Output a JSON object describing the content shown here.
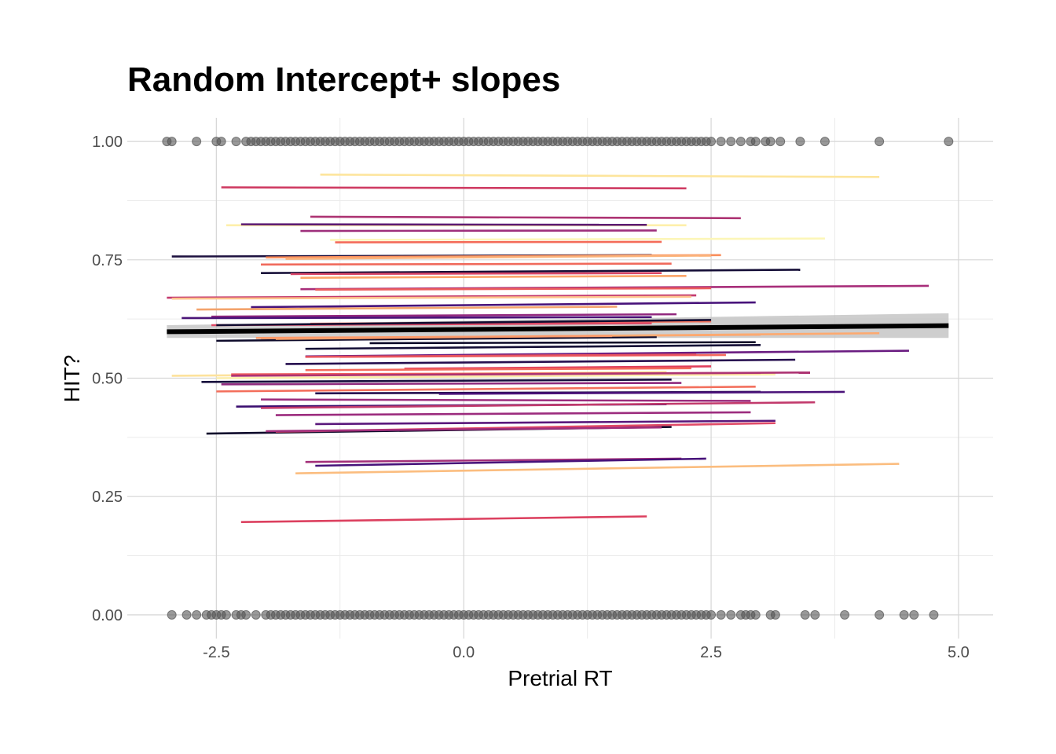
{
  "chart_data": {
    "type": "scatter",
    "title": "Random Intercept+ slopes",
    "xlabel": "Pretrial RT",
    "ylabel": "HIT?",
    "xlim": [
      -3.4,
      5.35
    ],
    "ylim": [
      -0.05,
      1.05
    ],
    "x_ticks": [
      -2.5,
      0.0,
      2.5,
      5.0
    ],
    "x_tick_labels": [
      "-2.5",
      "0.0",
      "2.5",
      "5.0"
    ],
    "y_ticks": [
      0.0,
      0.25,
      0.5,
      0.75,
      1.0
    ],
    "y_tick_labels": [
      "0.00",
      "0.25",
      "0.50",
      "0.75",
      "1.00"
    ],
    "grid": true,
    "legend": "none",
    "points": {
      "color": "#555555",
      "y1_x": [
        -3.0,
        -2.95,
        -2.7,
        -2.5,
        -2.45,
        -2.3,
        -2.2,
        -2.15,
        -2.1,
        -2.05,
        -2.0,
        -1.95,
        -1.9,
        -1.85,
        -1.8,
        -1.75,
        -1.7,
        -1.65,
        -1.6,
        -1.55,
        -1.5,
        -1.45,
        -1.4,
        -1.35,
        -1.3,
        -1.25,
        -1.2,
        -1.15,
        -1.1,
        -1.05,
        -1.0,
        -0.95,
        -0.9,
        -0.85,
        -0.8,
        -0.75,
        -0.7,
        -0.65,
        -0.6,
        -0.55,
        -0.5,
        -0.45,
        -0.4,
        -0.35,
        -0.3,
        -0.25,
        -0.2,
        -0.15,
        -0.1,
        -0.05,
        0.0,
        0.05,
        0.1,
        0.15,
        0.2,
        0.25,
        0.3,
        0.35,
        0.4,
        0.45,
        0.5,
        0.55,
        0.6,
        0.65,
        0.7,
        0.75,
        0.8,
        0.85,
        0.9,
        0.95,
        1.0,
        1.05,
        1.1,
        1.15,
        1.2,
        1.25,
        1.3,
        1.35,
        1.4,
        1.45,
        1.5,
        1.55,
        1.6,
        1.65,
        1.7,
        1.75,
        1.8,
        1.85,
        1.9,
        1.95,
        2.0,
        2.05,
        2.1,
        2.15,
        2.2,
        2.25,
        2.3,
        2.35,
        2.4,
        2.45,
        2.5,
        2.6,
        2.7,
        2.8,
        2.9,
        2.95,
        3.05,
        3.1,
        3.2,
        3.4,
        3.65,
        4.2,
        4.9
      ],
      "y0_x": [
        -2.95,
        -2.8,
        -2.7,
        -2.6,
        -2.55,
        -2.5,
        -2.45,
        -2.4,
        -2.3,
        -2.25,
        -2.2,
        -2.1,
        -2.0,
        -1.95,
        -1.9,
        -1.85,
        -1.8,
        -1.75,
        -1.7,
        -1.65,
        -1.6,
        -1.55,
        -1.5,
        -1.45,
        -1.4,
        -1.35,
        -1.3,
        -1.25,
        -1.2,
        -1.15,
        -1.1,
        -1.05,
        -1.0,
        -0.95,
        -0.9,
        -0.85,
        -0.8,
        -0.75,
        -0.7,
        -0.65,
        -0.6,
        -0.55,
        -0.5,
        -0.45,
        -0.4,
        -0.35,
        -0.3,
        -0.25,
        -0.2,
        -0.15,
        -0.1,
        -0.05,
        0.0,
        0.05,
        0.1,
        0.15,
        0.2,
        0.25,
        0.3,
        0.35,
        0.4,
        0.45,
        0.5,
        0.55,
        0.6,
        0.65,
        0.7,
        0.75,
        0.8,
        0.85,
        0.9,
        0.95,
        1.0,
        1.05,
        1.1,
        1.15,
        1.2,
        1.25,
        1.3,
        1.35,
        1.4,
        1.45,
        1.5,
        1.55,
        1.6,
        1.65,
        1.7,
        1.75,
        1.8,
        1.85,
        1.9,
        1.95,
        2.0,
        2.05,
        2.1,
        2.15,
        2.2,
        2.25,
        2.3,
        2.35,
        2.4,
        2.45,
        2.5,
        2.6,
        2.7,
        2.8,
        2.85,
        2.9,
        2.95,
        3.1,
        3.15,
        3.45,
        3.55,
        3.85,
        4.2,
        4.45,
        4.55,
        4.75
      ]
    },
    "fixed_effect": {
      "x": [
        -3.0,
        4.9
      ],
      "y": [
        0.598,
        0.611
      ],
      "ci_lower": [
        0.585,
        0.585
      ],
      "ci_upper": [
        0.612,
        0.637
      ],
      "color": "#000000",
      "ci_color": "#bdbdbd"
    },
    "random_lines": [
      {
        "x": [
          -1.45,
          4.2
        ],
        "y": [
          0.93,
          0.925
        ],
        "color": "#fde59c"
      },
      {
        "x": [
          -2.45,
          2.25
        ],
        "y": [
          0.903,
          0.901
        ],
        "color": "#cf3c63"
      },
      {
        "x": [
          -1.55,
          2.8
        ],
        "y": [
          0.841,
          0.838
        ],
        "color": "#ad3473"
      },
      {
        "x": [
          -2.4,
          2.25
        ],
        "y": [
          0.823,
          0.823
        ],
        "color": "#feefaa"
      },
      {
        "x": [
          -2.25,
          1.85
        ],
        "y": [
          0.825,
          0.824
        ],
        "color": "#5c1b74"
      },
      {
        "x": [
          -1.65,
          1.95
        ],
        "y": [
          0.811,
          0.812
        ],
        "color": "#9e2f7c"
      },
      {
        "x": [
          -1.35,
          3.65
        ],
        "y": [
          0.792,
          0.795
        ],
        "color": "#fcf6b8"
      },
      {
        "x": [
          -1.3,
          2.0
        ],
        "y": [
          0.787,
          0.788
        ],
        "color": "#f46b59"
      },
      {
        "x": [
          -2.95,
          1.9
        ],
        "y": [
          0.757,
          0.76
        ],
        "color": "#1d113f"
      },
      {
        "x": [
          -2.0,
          2.6
        ],
        "y": [
          0.755,
          0.76
        ],
        "color": "#f98e5c"
      },
      {
        "x": [
          -1.8,
          2.5
        ],
        "y": [
          0.752,
          0.759
        ],
        "color": "#fbb27a"
      },
      {
        "x": [
          -2.05,
          2.1
        ],
        "y": [
          0.74,
          0.742
        ],
        "color": "#f06a5c"
      },
      {
        "x": [
          -2.05,
          3.4
        ],
        "y": [
          0.722,
          0.729
        ],
        "color": "#150e37"
      },
      {
        "x": [
          -1.75,
          2.0
        ],
        "y": [
          0.72,
          0.722
        ],
        "color": "#d94668"
      },
      {
        "x": [
          -1.65,
          2.25
        ],
        "y": [
          0.712,
          0.716
        ],
        "color": "#fca569"
      },
      {
        "x": [
          -1.65,
          4.7
        ],
        "y": [
          0.688,
          0.695
        ],
        "color": "#a82e7a"
      },
      {
        "x": [
          -1.5,
          2.5
        ],
        "y": [
          0.687,
          0.69
        ],
        "color": "#ec5e5e"
      },
      {
        "x": [
          -3.0,
          2.35
        ],
        "y": [
          0.67,
          0.675
        ],
        "color": "#c43a6e"
      },
      {
        "x": [
          -2.95,
          2.3
        ],
        "y": [
          0.668,
          0.672
        ],
        "color": "#fdc38d"
      },
      {
        "x": [
          -2.15,
          2.95
        ],
        "y": [
          0.65,
          0.66
        ],
        "color": "#47127a"
      },
      {
        "x": [
          -2.7,
          1.55
        ],
        "y": [
          0.645,
          0.651
        ],
        "color": "#f3a36c"
      },
      {
        "x": [
          -2.55,
          2.15
        ],
        "y": [
          0.63,
          0.635
        ],
        "color": "#92287e"
      },
      {
        "x": [
          -2.85,
          1.9
        ],
        "y": [
          0.627,
          0.629
        ],
        "color": "#4b1478"
      },
      {
        "x": [
          -1.55,
          2.5
        ],
        "y": [
          0.615,
          0.62
        ],
        "color": "#f4735c"
      },
      {
        "x": [
          -2.55,
          1.9
        ],
        "y": [
          0.612,
          0.616
        ],
        "color": "#de4a66"
      },
      {
        "x": [
          -2.5,
          2.5
        ],
        "y": [
          0.612,
          0.623
        ],
        "color": "#120d31"
      },
      {
        "x": [
          -2.05,
          3.0
        ],
        "y": [
          0.584,
          0.592
        ],
        "color": "#fb9f6a"
      },
      {
        "x": [
          -2.5,
          1.95
        ],
        "y": [
          0.579,
          0.587
        ],
        "color": "#0e0b2b"
      },
      {
        "x": [
          -1.9,
          4.2
        ],
        "y": [
          0.583,
          0.595
        ],
        "color": "#fda96f"
      },
      {
        "x": [
          -2.1,
          1.5
        ],
        "y": [
          0.585,
          0.589
        ],
        "color": "#fd9a6a"
      },
      {
        "x": [
          -0.95,
          2.95
        ],
        "y": [
          0.574,
          0.576
        ],
        "color": "#0d0a29"
      },
      {
        "x": [
          -1.6,
          3.0
        ],
        "y": [
          0.562,
          0.57
        ],
        "color": "#130d35"
      },
      {
        "x": [
          -1.6,
          4.5
        ],
        "y": [
          0.546,
          0.558
        ],
        "color": "#6a1c81"
      },
      {
        "x": [
          -1.25,
          2.65
        ],
        "y": [
          0.545,
          0.549
        ],
        "color": "#f4695c"
      },
      {
        "x": [
          -1.6,
          2.35
        ],
        "y": [
          0.545,
          0.55
        ],
        "color": "#e8535e"
      },
      {
        "x": [
          -1.8,
          3.35
        ],
        "y": [
          0.53,
          0.539
        ],
        "color": "#260f4f"
      },
      {
        "x": [
          -0.6,
          2.5
        ],
        "y": [
          0.52,
          0.525
        ],
        "color": "#e03f5d"
      },
      {
        "x": [
          -1.6,
          2.3
        ],
        "y": [
          0.517,
          0.521
        ],
        "color": "#f46a5c"
      },
      {
        "x": [
          -2.95,
          2.05
        ],
        "y": [
          0.505,
          0.513
        ],
        "color": "#fde29c"
      },
      {
        "x": [
          -2.5,
          3.15
        ],
        "y": [
          0.5,
          0.508
        ],
        "color": "#fcedaa"
      },
      {
        "x": [
          -2.35,
          3.0
        ],
        "y": [
          0.508,
          0.511
        ],
        "color": "#ed5a5c"
      },
      {
        "x": [
          -2.35,
          3.5
        ],
        "y": [
          0.505,
          0.512
        ],
        "color": "#ad3473"
      },
      {
        "x": [
          -2.65,
          2.1
        ],
        "y": [
          0.492,
          0.497
        ],
        "color": "#170f3d"
      },
      {
        "x": [
          -2.45,
          2.2
        ],
        "y": [
          0.487,
          0.49
        ],
        "color": "#8f2a7e"
      },
      {
        "x": [
          -2.5,
          2.95
        ],
        "y": [
          0.472,
          0.482
        ],
        "color": "#f36f5c"
      },
      {
        "x": [
          -1.5,
          3.0
        ],
        "y": [
          0.468,
          0.471
        ],
        "color": "#260f4f"
      },
      {
        "x": [
          -0.25,
          3.85
        ],
        "y": [
          0.467,
          0.471
        ],
        "color": "#4a1279"
      },
      {
        "x": [
          -2.05,
          2.9
        ],
        "y": [
          0.455,
          0.452
        ],
        "color": "#9c2d7d"
      },
      {
        "x": [
          -2.3,
          2.05
        ],
        "y": [
          0.44,
          0.445
        ],
        "color": "#3b0f70"
      },
      {
        "x": [
          -2.05,
          3.55
        ],
        "y": [
          0.437,
          0.449
        ],
        "color": "#c23a6c"
      },
      {
        "x": [
          -1.9,
          2.9
        ],
        "y": [
          0.422,
          0.428
        ],
        "color": "#9c2c7e"
      },
      {
        "x": [
          -1.5,
          3.15
        ],
        "y": [
          0.403,
          0.41
        ],
        "color": "#5a187c"
      },
      {
        "x": [
          -2.6,
          2.1
        ],
        "y": [
          0.383,
          0.397
        ],
        "color": "#0f0b2c"
      },
      {
        "x": [
          -1.9,
          3.15
        ],
        "y": [
          0.387,
          0.405
        ],
        "color": "#e04a67"
      },
      {
        "x": [
          -2.0,
          2.0
        ],
        "y": [
          0.388,
          0.396
        ],
        "color": "#a12e7b"
      },
      {
        "x": [
          -1.6,
          2.2
        ],
        "y": [
          0.323,
          0.33
        ],
        "color": "#a32f79"
      },
      {
        "x": [
          -1.5,
          2.45
        ],
        "y": [
          0.315,
          0.33
        ],
        "color": "#47127a"
      },
      {
        "x": [
          -1.7,
          4.4
        ],
        "y": [
          0.299,
          0.319
        ],
        "color": "#fbbd7f"
      },
      {
        "x": [
          -2.25,
          1.85
        ],
        "y": [
          0.196,
          0.208
        ],
        "color": "#dc405f"
      }
    ]
  }
}
